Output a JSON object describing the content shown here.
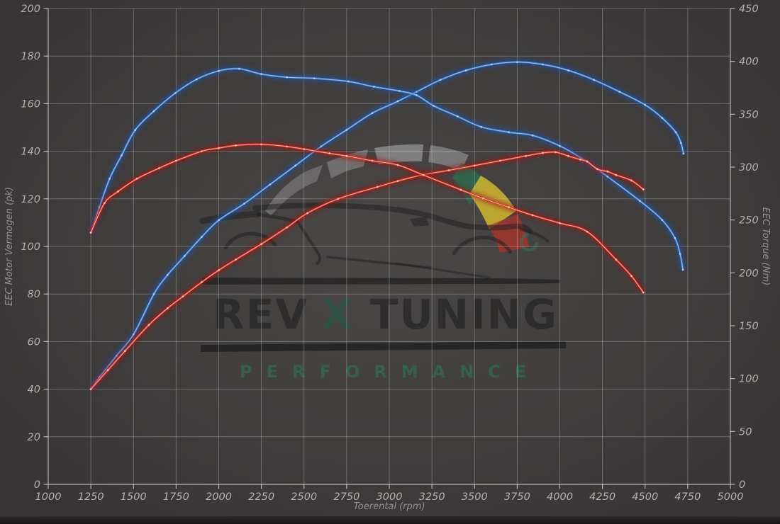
{
  "axes": {
    "x": {
      "title": "Toerental (rpm)",
      "min": 1000,
      "max": 5000,
      "step": 250,
      "ticks": [
        1000,
        1250,
        1500,
        1750,
        2000,
        2250,
        2500,
        2750,
        3000,
        3250,
        3500,
        3750,
        4000,
        4250,
        4500,
        4750,
        5000
      ]
    },
    "y_left": {
      "title": "EEC Motor Vermogen (pk)",
      "min": 0,
      "max": 200,
      "step": 20,
      "ticks": [
        0,
        20,
        40,
        60,
        80,
        100,
        120,
        140,
        160,
        180,
        200
      ]
    },
    "y_right": {
      "title": "EEC Torque (Nm)",
      "min": 0,
      "max": 450,
      "step": 50,
      "ticks": [
        0,
        50,
        100,
        150,
        200,
        250,
        300,
        350,
        400,
        450
      ]
    }
  },
  "watermark": {
    "brand_left": "REV",
    "brand_mid": "X",
    "brand_right": "TUNING",
    "subtitle": "PERFORMANCE",
    "accent_green": "#2d7a58",
    "accent_yellow": "#d6bb2f",
    "accent_red": "#b33229",
    "text_dark": "#1c1c1c"
  },
  "chart_data": {
    "type": "line",
    "title": "",
    "xlabel": "Toerental (rpm)",
    "ylabel_left": "EEC Motor Vermogen (pk)",
    "ylabel_right": "EEC Torque (Nm)",
    "x_range": [
      1000,
      5000
    ],
    "y_left_range": [
      0,
      200
    ],
    "y_right_range": [
      0,
      450
    ],
    "grid": true,
    "legend": "none",
    "series": [
      {
        "name": "blue-power-pk",
        "axis": "left",
        "unit": "pk",
        "stroke": "#3f7cc9",
        "glow": "#1a55a8",
        "core": "#aacdf2",
        "points": [
          [
            1250,
            40
          ],
          [
            1300,
            45
          ],
          [
            1400,
            54
          ],
          [
            1500,
            63
          ],
          [
            1620,
            80
          ],
          [
            1700,
            88
          ],
          [
            1800,
            96
          ],
          [
            1900,
            104
          ],
          [
            2000,
            111
          ],
          [
            2150,
            118
          ],
          [
            2300,
            126
          ],
          [
            2450,
            134
          ],
          [
            2600,
            142
          ],
          [
            2750,
            149
          ],
          [
            2900,
            156
          ],
          [
            3050,
            161
          ],
          [
            3160,
            165
          ],
          [
            3300,
            170
          ],
          [
            3450,
            174
          ],
          [
            3600,
            176.5
          ],
          [
            3750,
            177.5
          ],
          [
            3900,
            176.5
          ],
          [
            4050,
            174
          ],
          [
            4200,
            170
          ],
          [
            4350,
            165
          ],
          [
            4500,
            159.5
          ],
          [
            4600,
            154
          ],
          [
            4680,
            148
          ],
          [
            4710,
            143.5
          ],
          [
            4725,
            139
          ]
        ]
      },
      {
        "name": "blue-torque-nm",
        "axis": "right",
        "unit": "Nm",
        "stroke": "#3f7cc9",
        "glow": "#1a55a8",
        "core": "#aacdf2",
        "points": [
          [
            1250,
            238
          ],
          [
            1300,
            262
          ],
          [
            1360,
            289
          ],
          [
            1430,
            311
          ],
          [
            1510,
            335
          ],
          [
            1620,
            353
          ],
          [
            1745,
            370
          ],
          [
            1870,
            383
          ],
          [
            2000,
            391
          ],
          [
            2120,
            393
          ],
          [
            2250,
            388
          ],
          [
            2400,
            385
          ],
          [
            2560,
            384
          ],
          [
            2760,
            381
          ],
          [
            2910,
            376
          ],
          [
            3060,
            372
          ],
          [
            3160,
            368
          ],
          [
            3260,
            358
          ],
          [
            3400,
            348
          ],
          [
            3540,
            338
          ],
          [
            3700,
            333
          ],
          [
            3840,
            330
          ],
          [
            4000,
            320
          ],
          [
            4150,
            306
          ],
          [
            4280,
            291
          ],
          [
            4470,
            268
          ],
          [
            4600,
            250
          ],
          [
            4675,
            233
          ],
          [
            4705,
            218
          ],
          [
            4722,
            203
          ]
        ]
      },
      {
        "name": "red-power-pk",
        "axis": "left",
        "unit": "pk",
        "stroke": "#d6352a",
        "glow": "#9c120a",
        "core": "#ffbdae",
        "points": [
          [
            1250,
            40
          ],
          [
            1350,
            48
          ],
          [
            1450,
            56
          ],
          [
            1590,
            67
          ],
          [
            1700,
            74
          ],
          [
            1790,
            79
          ],
          [
            1900,
            85
          ],
          [
            2000,
            90
          ],
          [
            2100,
            94.5
          ],
          [
            2250,
            101
          ],
          [
            2400,
            108
          ],
          [
            2520,
            114
          ],
          [
            2700,
            120
          ],
          [
            2930,
            125
          ],
          [
            3050,
            127.5
          ],
          [
            3190,
            130
          ],
          [
            3350,
            132
          ],
          [
            3500,
            134
          ],
          [
            3650,
            136
          ],
          [
            3800,
            138
          ],
          [
            3900,
            139.3
          ],
          [
            3975,
            139.6
          ],
          [
            4050,
            138
          ],
          [
            4120,
            136.5
          ],
          [
            4160,
            135.7
          ],
          [
            4220,
            132.5
          ],
          [
            4280,
            131.5
          ],
          [
            4330,
            130
          ],
          [
            4420,
            127.7
          ],
          [
            4490,
            124
          ]
        ]
      },
      {
        "name": "red-torque-nm",
        "axis": "right",
        "unit": "Nm",
        "stroke": "#d6352a",
        "glow": "#9c120a",
        "core": "#ffbdae",
        "points": [
          [
            1250,
            238
          ],
          [
            1330,
            266
          ],
          [
            1410,
            277
          ],
          [
            1520,
            289
          ],
          [
            1650,
            299
          ],
          [
            1750,
            306
          ],
          [
            1900,
            315
          ],
          [
            2000,
            318
          ],
          [
            2100,
            320.5
          ],
          [
            2250,
            321.5
          ],
          [
            2400,
            319.5
          ],
          [
            2500,
            317
          ],
          [
            2650,
            313
          ],
          [
            2750,
            310.5
          ],
          [
            2900,
            306
          ],
          [
            3050,
            302
          ],
          [
            3200,
            292.5
          ],
          [
            3420,
            278.5
          ],
          [
            3550,
            270.5
          ],
          [
            3700,
            262
          ],
          [
            3840,
            254.5
          ],
          [
            4000,
            247
          ],
          [
            4160,
            239
          ],
          [
            4330,
            212.5
          ],
          [
            4420,
            197
          ],
          [
            4490,
            181.5
          ]
        ]
      }
    ]
  }
}
